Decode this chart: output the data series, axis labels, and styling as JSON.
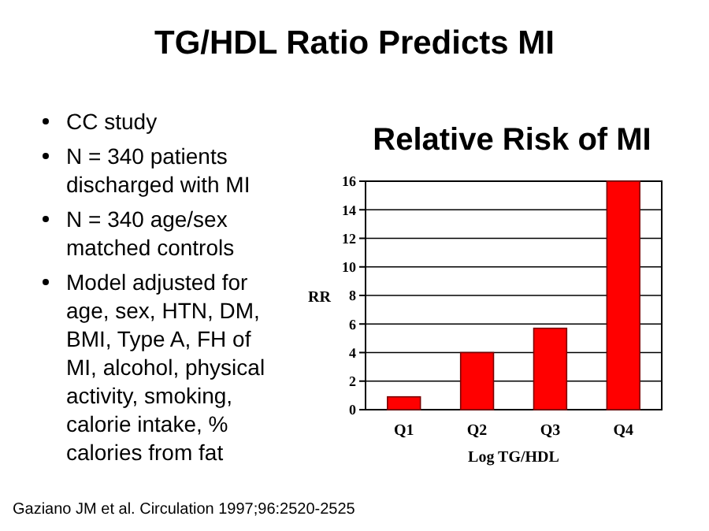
{
  "chart_data": {
    "type": "bar",
    "title": "TG/HDL Ratio Predicts MI",
    "subtitle": "Relative Risk of MI",
    "xlabel": "Log TG/HDL",
    "ylabel": "RR",
    "categories": [
      "Q1",
      "Q2",
      "Q3",
      "Q4"
    ],
    "values": [
      0.9,
      4.0,
      5.7,
      16
    ],
    "color": "#ff0000",
    "ylim": [
      0,
      16
    ],
    "yticks": [
      0,
      2,
      4,
      6,
      8,
      10,
      12,
      14,
      16
    ],
    "grid": "y",
    "annotations": [
      "CC study",
      "N = 340 patients discharged with MI",
      "N = 340 age/sex matched controls",
      "Model adjusted for age, sex, HTN, DM, BMI, Type A, FH of MI, alcohol, physical activity, smoking, calorie intake, % calories from fat",
      "Gaziano JM et al. Circulation 1997;96:2520-2525"
    ]
  }
}
